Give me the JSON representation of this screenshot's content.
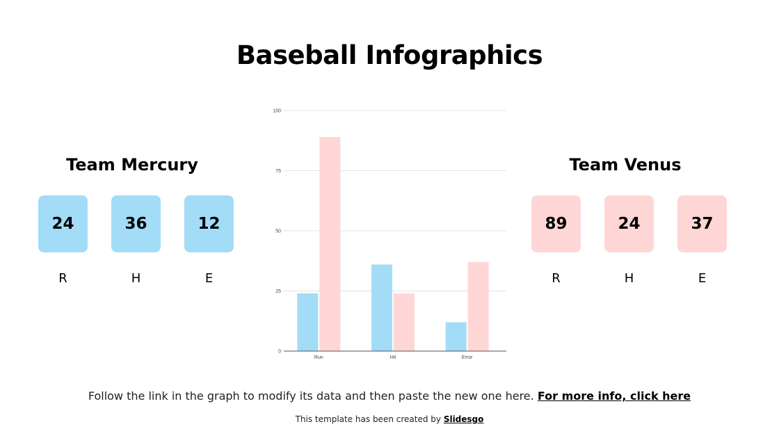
{
  "title": "Baseball Infographics",
  "colors": {
    "mercury": "#a3dcf7",
    "venus": "#ffd6d6",
    "grid": "#e3e3e3",
    "axis": "#555555"
  },
  "teams": [
    {
      "name": "Team Mercury",
      "stats": [
        {
          "value": "24",
          "label": "R"
        },
        {
          "value": "36",
          "label": "H"
        },
        {
          "value": "12",
          "label": "E"
        }
      ]
    },
    {
      "name": "Team Venus",
      "stats": [
        {
          "value": "89",
          "label": "R"
        },
        {
          "value": "24",
          "label": "H"
        },
        {
          "value": "37",
          "label": "E"
        }
      ]
    }
  ],
  "footer": {
    "text": "Follow the link in the graph to modify its data and then paste the new one here.",
    "link": "For more info, click here",
    "credit": "This template has been created by",
    "credit_link": "Slidesgo"
  },
  "chart_data": {
    "type": "bar",
    "title": "",
    "categories": [
      "Run",
      "Hit",
      "Error"
    ],
    "series": [
      {
        "name": "Team Mercury",
        "values": [
          24,
          36,
          12
        ],
        "color": "#a3dcf7"
      },
      {
        "name": "Team Venus",
        "values": [
          89,
          24,
          37
        ],
        "color": "#ffd6d6"
      }
    ],
    "yticks": [
      0,
      25,
      50,
      75,
      100
    ],
    "ylim": [
      0,
      100
    ],
    "xlabel": "",
    "ylabel": "",
    "grid": true,
    "legend": "none"
  }
}
